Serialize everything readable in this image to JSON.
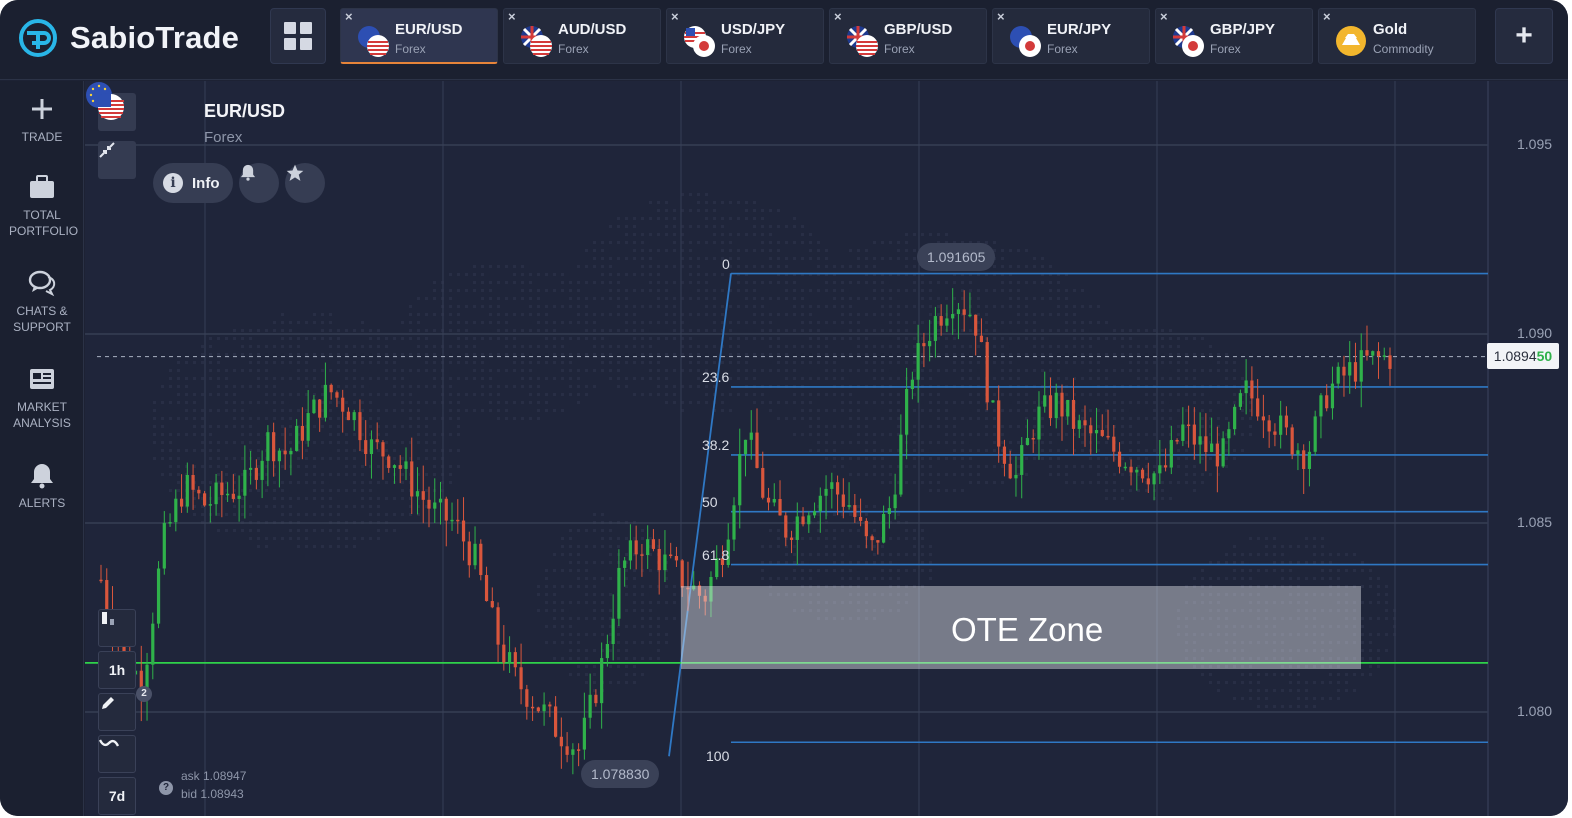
{
  "app": {
    "brand": "SabioTrade"
  },
  "tabs": [
    {
      "name": "EUR/USD",
      "category": "Forex",
      "active": true,
      "flags": [
        "eu",
        "us"
      ]
    },
    {
      "name": "AUD/USD",
      "category": "Forex",
      "active": false,
      "flags": [
        "au",
        "us"
      ]
    },
    {
      "name": "USD/JPY",
      "category": "Forex",
      "active": false,
      "flags": [
        "us",
        "jp"
      ]
    },
    {
      "name": "GBP/USD",
      "category": "Forex",
      "active": false,
      "flags": [
        "gb",
        "us"
      ]
    },
    {
      "name": "EUR/JPY",
      "category": "Forex",
      "active": false,
      "flags": [
        "eu",
        "jp"
      ]
    },
    {
      "name": "GBP/JPY",
      "category": "Forex",
      "active": false,
      "flags": [
        "gb",
        "jp"
      ]
    },
    {
      "name": "Gold",
      "category": "Commodity",
      "active": false,
      "flags": [
        "gold"
      ]
    }
  ],
  "sidebar": {
    "items": [
      {
        "label": "TRADE",
        "icon": "plus-icon"
      },
      {
        "label": "TOTAL PORTFOLIO",
        "icon": "briefcase-icon"
      },
      {
        "label": "CHATS & SUPPORT",
        "icon": "chat-icon"
      },
      {
        "label": "MARKET ANALYSIS",
        "icon": "newspaper-icon"
      },
      {
        "label": "ALERTS",
        "icon": "bell-icon"
      }
    ]
  },
  "chart_header": {
    "symbol": "EUR/USD",
    "category": "Forex",
    "info_label": "Info"
  },
  "toolbar": {
    "timeframe": "1h",
    "drawings_count": "2",
    "range": "7d"
  },
  "quote": {
    "ask": "ask 1.08947",
    "bid": "bid 1.08943",
    "current_main": "1.0894",
    "current_tail": "50"
  },
  "annotations": {
    "high": "1.091605",
    "low": "1.078830",
    "zone": "OTE Zone"
  },
  "colors": {
    "background": "#1f253a",
    "up": "#2fb24a",
    "down": "#d9563c",
    "fib": "#2f78c4",
    "support": "#2fd24a",
    "accent": "#e6843a"
  },
  "chart_data": {
    "type": "candlestick",
    "symbol": "EUR/USD",
    "timeframe": "1h",
    "y_ticks": [
      "1.095",
      "1.090",
      "1.085",
      "1.080"
    ],
    "ylim": [
      1.0775,
      1.0965
    ],
    "current_price": 1.0894,
    "swing_low": 1.07883,
    "swing_high": 1.091605,
    "support_level": 1.0813,
    "fibonacci": [
      {
        "level": "0",
        "price": 1.0916
      },
      {
        "level": "23.6",
        "price": 1.0886
      },
      {
        "level": "38.2",
        "price": 1.0868
      },
      {
        "level": "50",
        "price": 1.0853
      },
      {
        "level": "61.8",
        "price": 1.0839
      },
      {
        "level": "100",
        "price": 1.0792
      }
    ],
    "close_path": [
      1.0835,
      1.0815,
      1.0808,
      1.0845,
      1.086,
      1.0855,
      1.0858,
      1.086,
      1.0872,
      1.0868,
      1.0878,
      1.0885,
      1.088,
      1.087,
      1.0868,
      1.086,
      1.0853,
      1.085,
      1.084,
      1.082,
      1.0808,
      1.0802,
      1.0795,
      1.079,
      1.081,
      1.0838,
      1.0845,
      1.084,
      1.0835,
      1.083,
      1.0845,
      1.0875,
      1.0855,
      1.0848,
      1.0855,
      1.086,
      1.0855,
      1.0842,
      1.0855,
      1.089,
      1.0903,
      1.091,
      1.0905,
      1.0875,
      1.0862,
      1.0878,
      1.0882,
      1.0875,
      1.0872,
      1.0868,
      1.0865,
      1.0862,
      1.0875,
      1.087,
      1.0868,
      1.0885,
      1.088,
      1.0873,
      1.0868,
      1.0885,
      1.089,
      1.0893,
      1.0894
    ]
  }
}
